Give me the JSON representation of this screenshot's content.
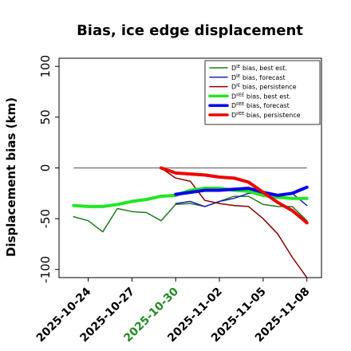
{
  "chart_data": {
    "type": "line",
    "title": "Bias, ice edge displacement",
    "xlabel": "",
    "ylabel": "Displacement bias (km)",
    "xlim": [
      "2025-10-22",
      "2025-11-09"
    ],
    "ylim": [
      -108,
      108
    ],
    "yticks": [
      100,
      50,
      0,
      -50,
      -100
    ],
    "xticks": [
      "2025-10-24",
      "2025-10-27",
      "2025-10-30",
      "2025-11-02",
      "2025-11-05",
      "2025-11-08"
    ],
    "xtick_colors": [
      "#000000",
      "#000000",
      "#228b22",
      "#000000",
      "#000000",
      "#000000"
    ],
    "grid": false,
    "legend_position": "upper-right",
    "reference_line": {
      "y": 0,
      "x_start": "2025-10-23",
      "x_end": "2025-11-08",
      "color": "#808080"
    },
    "series": [
      {
        "name": "Dᴵᴱ bias, best est.",
        "sup": "IE",
        "label_rest": " bias, best est.",
        "color": "#1f7a1f",
        "width": 1.5,
        "x": [
          "2025-10-23",
          "2025-10-24",
          "2025-10-25",
          "2025-10-26",
          "2025-10-27",
          "2025-10-28",
          "2025-10-29",
          "2025-10-30",
          "2025-10-31",
          "2025-11-01",
          "2025-11-02",
          "2025-11-03",
          "2025-11-04",
          "2025-11-05",
          "2025-11-06",
          "2025-11-07",
          "2025-11-08"
        ],
        "y": [
          -48,
          -52,
          -63,
          -40,
          -43,
          -44,
          -52,
          -36,
          -35,
          -38,
          -33,
          -28,
          -28,
          -36,
          -38,
          -38,
          -52
        ]
      },
      {
        "name": "Dᴵᴱ bias, forecast",
        "sup": "IE",
        "label_rest": " bias, forecast",
        "color": "#1f1fbf",
        "width": 1.5,
        "x": [
          "2025-10-30",
          "2025-10-31",
          "2025-11-01",
          "2025-11-02",
          "2025-11-03",
          "2025-11-04",
          "2025-11-05",
          "2025-11-06",
          "2025-11-07",
          "2025-11-08"
        ],
        "y": [
          -35,
          -33,
          -38,
          -33,
          -30,
          -25,
          -25,
          -27,
          -25,
          -37
        ]
      },
      {
        "name": "Dᴵᴱ bias, persistence",
        "sup": "IE",
        "label_rest": " bias, persistence",
        "color": "#8b0000",
        "width": 1.5,
        "x": [
          "2025-10-29",
          "2025-10-30",
          "2025-10-31",
          "2025-11-01",
          "2025-11-02",
          "2025-11-03",
          "2025-11-04",
          "2025-11-05",
          "2025-11-06",
          "2025-11-07",
          "2025-11-08"
        ],
        "y": [
          0,
          -10,
          -13,
          -32,
          -35,
          -37,
          -38,
          -50,
          -65,
          -88,
          -108
        ]
      },
      {
        "name": "Dᴵᴱᴱ bias, best est.",
        "sup": "IIEE",
        "label_rest": " bias, best est.",
        "color": "#22e622",
        "width": 4,
        "x": [
          "2025-10-23",
          "2025-10-24",
          "2025-10-25",
          "2025-10-26",
          "2025-10-27",
          "2025-10-28",
          "2025-10-29",
          "2025-10-30",
          "2025-10-31",
          "2025-11-01",
          "2025-11-02",
          "2025-11-03",
          "2025-11-04",
          "2025-11-05",
          "2025-11-06",
          "2025-11-07",
          "2025-11-08"
        ],
        "y": [
          -37,
          -38,
          -38,
          -36,
          -33,
          -31,
          -28,
          -27,
          -22,
          -20,
          -20,
          -22,
          -23,
          -27,
          -29,
          -30,
          -30
        ]
      },
      {
        "name": "Dᴵᴱᴱ bias, forecast",
        "sup": "IIEE",
        "label_rest": " bias, forecast",
        "color": "#0000ee",
        "width": 4,
        "x": [
          "2025-10-30",
          "2025-10-31",
          "2025-11-01",
          "2025-11-02",
          "2025-11-03",
          "2025-11-04",
          "2025-11-05",
          "2025-11-06",
          "2025-11-07",
          "2025-11-08"
        ],
        "y": [
          -26,
          -24,
          -22,
          -22,
          -21,
          -20,
          -24,
          -27,
          -25,
          -19
        ]
      },
      {
        "name": "Dᴵᴱᴱ bias, persistence",
        "sup": "IIEE",
        "label_rest": " bias, persistence",
        "color": "#ee0000",
        "width": 4,
        "x": [
          "2025-10-29",
          "2025-10-30",
          "2025-10-31",
          "2025-11-01",
          "2025-11-02",
          "2025-11-03",
          "2025-11-04",
          "2025-11-05",
          "2025-11-06",
          "2025-11-07",
          "2025-11-08"
        ],
        "y": [
          0,
          -5,
          -6,
          -7,
          -9,
          -10,
          -14,
          -24,
          -34,
          -42,
          -54
        ]
      }
    ]
  }
}
